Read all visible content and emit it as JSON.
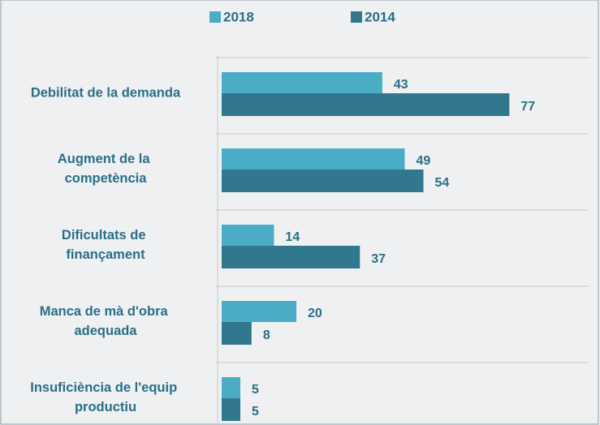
{
  "chart_data": {
    "type": "hbar",
    "categories": [
      "Debilitat de la demanda",
      "Augment de la competència",
      "Dificultats de finançament",
      "Manca de mà d'obra adequada",
      "Insuficiència de l'equip productiu"
    ],
    "series": [
      {
        "name": "2018",
        "color": "#4bacc6",
        "values": [
          43,
          49,
          14,
          20,
          5
        ]
      },
      {
        "name": "2014",
        "color": "#31788e",
        "values": [
          77,
          54,
          37,
          8,
          5
        ]
      }
    ],
    "xlim": [
      0,
      98
    ],
    "grid": true,
    "legend": "top"
  }
}
